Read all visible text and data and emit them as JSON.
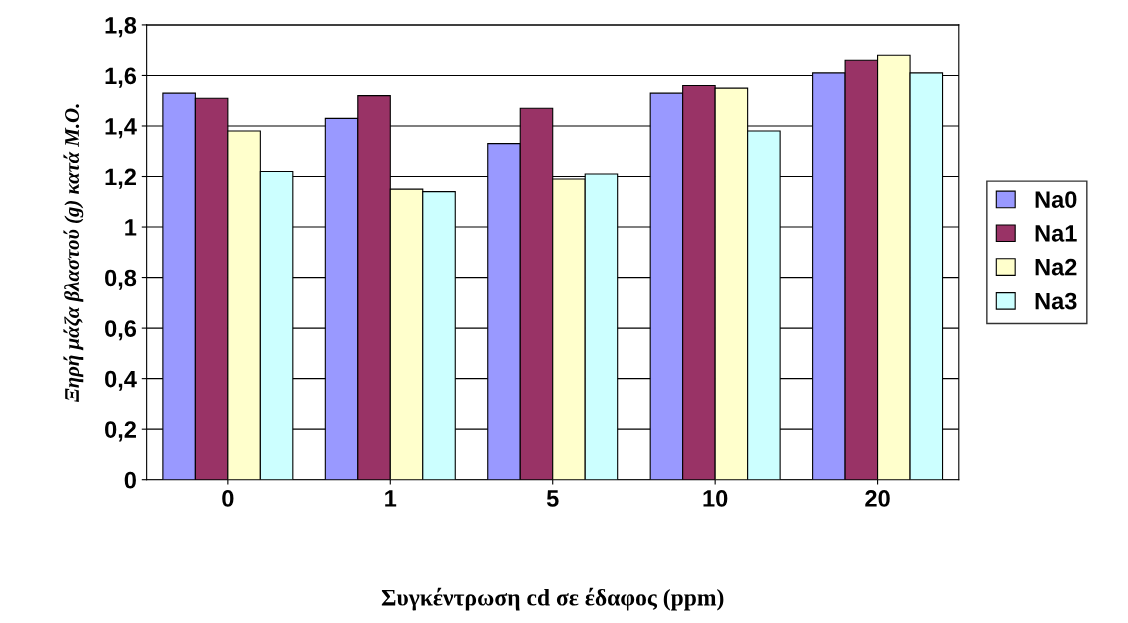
{
  "chart_data": {
    "type": "bar",
    "categories": [
      "0",
      "1",
      "5",
      "10",
      "20"
    ],
    "series": [
      {
        "name": "Na0",
        "color": "#9999ff",
        "values": [
          1.53,
          1.43,
          1.33,
          1.53,
          1.61
        ]
      },
      {
        "name": "Na1",
        "color": "#993366",
        "values": [
          1.51,
          1.52,
          1.47,
          1.56,
          1.66
        ]
      },
      {
        "name": "Na2",
        "color": "#ffffcc",
        "values": [
          1.38,
          1.15,
          1.19,
          1.55,
          1.68
        ]
      },
      {
        "name": "Na3",
        "color": "#ccffff",
        "values": [
          1.22,
          1.14,
          1.21,
          1.38,
          1.61
        ]
      }
    ],
    "xlabel": "Συγκέντρωση cd σε έδαφος (ppm)",
    "ylabel": "Ξηρή μάζα βλαστού (g) κατά Μ.Ο.",
    "ylim": [
      0,
      1.8
    ],
    "yticks": [
      0,
      {
        "value": 0.2,
        "label": "0,2"
      },
      {
        "value": 0.4,
        "label": "0,4"
      },
      {
        "value": 0.6,
        "label": "0,6"
      },
      {
        "value": 0.8,
        "label": "0,8"
      },
      1,
      {
        "value": 1.2,
        "label": "1,2"
      },
      {
        "value": 1.4,
        "label": "1,4"
      },
      {
        "value": 1.6,
        "label": "1,6"
      },
      {
        "value": 1.8,
        "label": "1,8"
      }
    ],
    "grid": "y",
    "legend": "right"
  }
}
